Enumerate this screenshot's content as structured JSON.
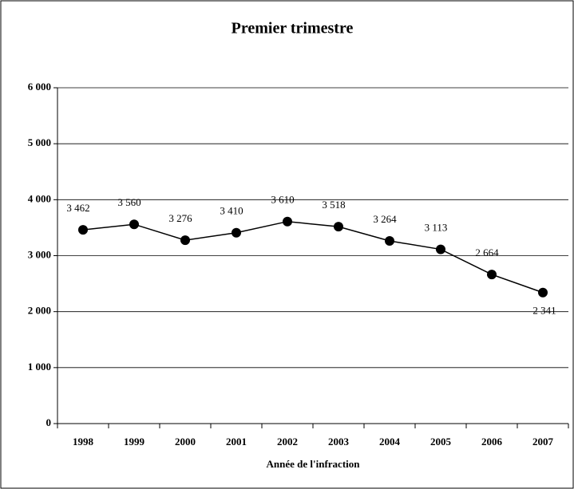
{
  "chart_data": {
    "type": "line",
    "title": "Premier trimestre",
    "x_label": "Année de l'infraction",
    "categories": [
      "1998",
      "1999",
      "2000",
      "2001",
      "2002",
      "2003",
      "2004",
      "2005",
      "2006",
      "2007"
    ],
    "values": [
      3462,
      3560,
      3276,
      3410,
      3610,
      3518,
      3264,
      3113,
      2664,
      2341
    ],
    "value_labels": [
      "3 462",
      "3 560",
      "3 276",
      "3 410",
      "3 610",
      "3 518",
      "3 264",
      "3 113",
      "2 664",
      "2 341"
    ],
    "color": "#000000",
    "ylim": [
      0,
      6000
    ],
    "yticks": [
      {
        "value": 0,
        "label": "0"
      },
      {
        "value": 1000,
        "label": "1 000"
      },
      {
        "value": 2000,
        "label": "2 000"
      },
      {
        "value": 3000,
        "label": "3 000"
      },
      {
        "value": 4000,
        "label": "4 000"
      },
      {
        "value": 5000,
        "label": "5 000"
      },
      {
        "value": 6000,
        "label": "6 000"
      }
    ],
    "grid": true
  }
}
